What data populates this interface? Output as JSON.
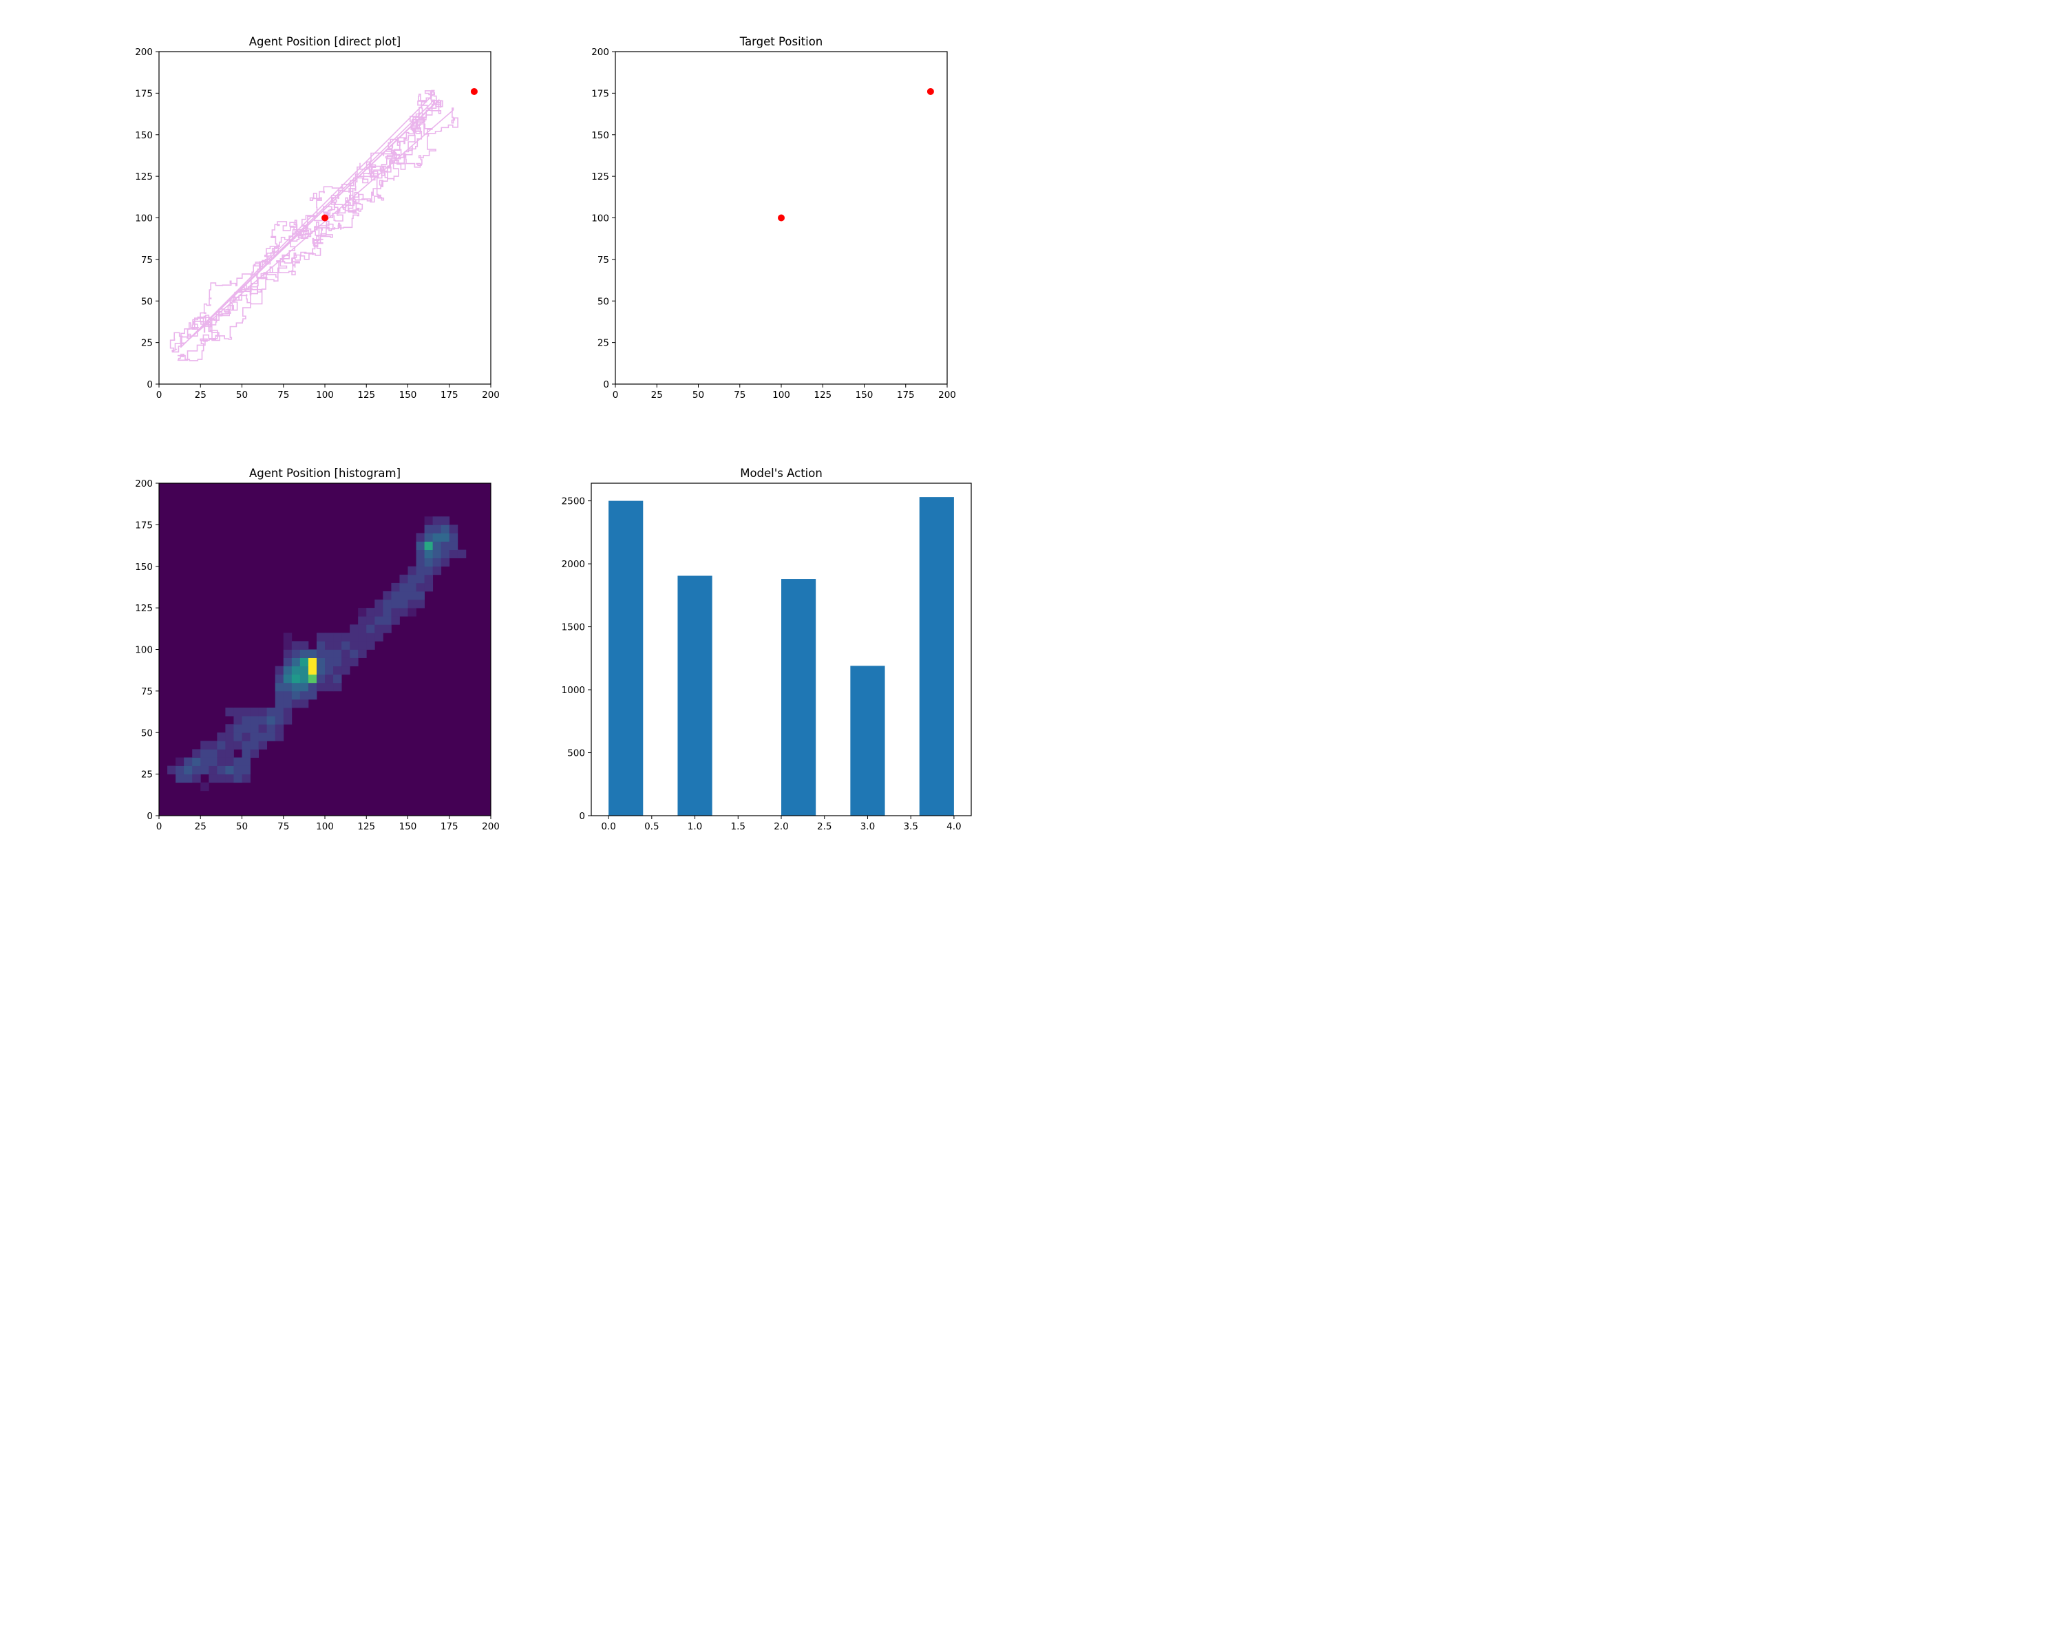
{
  "chart_data": [
    {
      "id": "agent_direct",
      "type": "line",
      "title": "Agent Position [direct plot]",
      "xlabel": "",
      "ylabel": "",
      "xlim": [
        0,
        200
      ],
      "ylim": [
        0,
        200
      ],
      "xticks": [
        0,
        25,
        50,
        75,
        100,
        125,
        150,
        175,
        200
      ],
      "yticks": [
        0,
        25,
        50,
        75,
        100,
        125,
        150,
        175,
        200
      ],
      "line_color": "#eab4ec",
      "point_color": "#ff0000",
      "targets": [
        [
          100,
          100
        ],
        [
          190,
          176
        ]
      ],
      "trajectory_summary": [
        [
          10,
          20
        ],
        [
          30,
          38
        ],
        [
          55,
          60
        ],
        [
          75,
          78
        ],
        [
          90,
          90
        ],
        [
          100,
          100
        ],
        [
          115,
          112
        ],
        [
          130,
          125
        ],
        [
          145,
          140
        ],
        [
          160,
          158
        ],
        [
          170,
          170
        ]
      ],
      "grid": false
    },
    {
      "id": "target_position",
      "type": "scatter",
      "title": "Target Position",
      "xlabel": "",
      "ylabel": "",
      "xlim": [
        0,
        200
      ],
      "ylim": [
        0,
        200
      ],
      "xticks": [
        0,
        25,
        50,
        75,
        100,
        125,
        150,
        175,
        200
      ],
      "yticks": [
        0,
        25,
        50,
        75,
        100,
        125,
        150,
        175,
        200
      ],
      "point_color": "#ff0000",
      "points": [
        [
          100,
          100
        ],
        [
          190,
          176
        ]
      ],
      "grid": false
    },
    {
      "id": "agent_hist",
      "type": "heatmap",
      "title": "Agent Position [histogram]",
      "xlabel": "",
      "ylabel": "",
      "xlim": [
        0,
        200
      ],
      "ylim": [
        0,
        200
      ],
      "xticks": [
        0,
        25,
        50,
        75,
        100,
        125,
        150,
        175,
        200
      ],
      "yticks": [
        0,
        25,
        50,
        75,
        100,
        125,
        150,
        175,
        200
      ],
      "colormap": "viridis",
      "bin_width": 5,
      "max_count": 15,
      "cells": [
        [
          10,
          20,
          3
        ],
        [
          15,
          20,
          3
        ],
        [
          20,
          20,
          2
        ],
        [
          25,
          15,
          1
        ],
        [
          30,
          20,
          2
        ],
        [
          35,
          20,
          2
        ],
        [
          40,
          20,
          2
        ],
        [
          45,
          20,
          3
        ],
        [
          50,
          20,
          2
        ],
        [
          5,
          25,
          2
        ],
        [
          10,
          25,
          3
        ],
        [
          15,
          25,
          4
        ],
        [
          20,
          25,
          3
        ],
        [
          25,
          25,
          3
        ],
        [
          30,
          25,
          2
        ],
        [
          35,
          25,
          3
        ],
        [
          40,
          25,
          4
        ],
        [
          45,
          25,
          3
        ],
        [
          50,
          25,
          3
        ],
        [
          10,
          30,
          1
        ],
        [
          15,
          30,
          3
        ],
        [
          20,
          30,
          4
        ],
        [
          25,
          30,
          3
        ],
        [
          30,
          30,
          3
        ],
        [
          35,
          30,
          2
        ],
        [
          40,
          30,
          2
        ],
        [
          45,
          30,
          3
        ],
        [
          50,
          30,
          3
        ],
        [
          20,
          35,
          2
        ],
        [
          25,
          35,
          3
        ],
        [
          30,
          35,
          3
        ],
        [
          35,
          35,
          2
        ],
        [
          40,
          35,
          2
        ],
        [
          50,
          35,
          3
        ],
        [
          55,
          35,
          2
        ],
        [
          25,
          40,
          2
        ],
        [
          30,
          40,
          2
        ],
        [
          35,
          40,
          3
        ],
        [
          40,
          40,
          2
        ],
        [
          45,
          40,
          2
        ],
        [
          50,
          40,
          3
        ],
        [
          55,
          40,
          3
        ],
        [
          60,
          40,
          2
        ],
        [
          35,
          45,
          2
        ],
        [
          40,
          45,
          2
        ],
        [
          45,
          45,
          3
        ],
        [
          50,
          45,
          2
        ],
        [
          55,
          45,
          3
        ],
        [
          60,
          45,
          3
        ],
        [
          65,
          45,
          3
        ],
        [
          70,
          45,
          2
        ],
        [
          40,
          50,
          2
        ],
        [
          45,
          50,
          3
        ],
        [
          50,
          50,
          3
        ],
        [
          55,
          50,
          3
        ],
        [
          60,
          50,
          2
        ],
        [
          65,
          50,
          3
        ],
        [
          70,
          50,
          2
        ],
        [
          45,
          55,
          2
        ],
        [
          50,
          55,
          3
        ],
        [
          55,
          55,
          3
        ],
        [
          60,
          55,
          3
        ],
        [
          65,
          55,
          4
        ],
        [
          70,
          55,
          3
        ],
        [
          75,
          55,
          2
        ],
        [
          40,
          60,
          2
        ],
        [
          45,
          60,
          2
        ],
        [
          50,
          60,
          2
        ],
        [
          55,
          60,
          2
        ],
        [
          60,
          60,
          2
        ],
        [
          65,
          60,
          3
        ],
        [
          70,
          60,
          3
        ],
        [
          75,
          60,
          2
        ],
        [
          70,
          65,
          3
        ],
        [
          75,
          65,
          3
        ],
        [
          80,
          65,
          2
        ],
        [
          85,
          65,
          2
        ],
        [
          70,
          70,
          3
        ],
        [
          75,
          70,
          3
        ],
        [
          80,
          70,
          4
        ],
        [
          85,
          70,
          3
        ],
        [
          90,
          70,
          3
        ],
        [
          70,
          75,
          4
        ],
        [
          75,
          75,
          4
        ],
        [
          80,
          75,
          5
        ],
        [
          85,
          75,
          5
        ],
        [
          90,
          75,
          3
        ],
        [
          95,
          75,
          2
        ],
        [
          100,
          75,
          2
        ],
        [
          105,
          75,
          2
        ],
        [
          70,
          80,
          3
        ],
        [
          75,
          80,
          6
        ],
        [
          80,
          80,
          8
        ],
        [
          85,
          80,
          7
        ],
        [
          90,
          80,
          11
        ],
        [
          95,
          80,
          3
        ],
        [
          100,
          80,
          2
        ],
        [
          105,
          80,
          3
        ],
        [
          70,
          85,
          2
        ],
        [
          75,
          85,
          5
        ],
        [
          80,
          85,
          7
        ],
        [
          85,
          85,
          7
        ],
        [
          90,
          85,
          15
        ],
        [
          95,
          85,
          4
        ],
        [
          100,
          85,
          3
        ],
        [
          105,
          85,
          2
        ],
        [
          110,
          85,
          2
        ],
        [
          75,
          90,
          3
        ],
        [
          80,
          90,
          5
        ],
        [
          85,
          90,
          8
        ],
        [
          90,
          90,
          15
        ],
        [
          95,
          90,
          4
        ],
        [
          100,
          90,
          3
        ],
        [
          105,
          90,
          3
        ],
        [
          110,
          90,
          2
        ],
        [
          115,
          90,
          2
        ],
        [
          75,
          95,
          2
        ],
        [
          80,
          95,
          3
        ],
        [
          85,
          95,
          4
        ],
        [
          90,
          95,
          4
        ],
        [
          95,
          95,
          3
        ],
        [
          100,
          95,
          3
        ],
        [
          105,
          95,
          3
        ],
        [
          110,
          95,
          2
        ],
        [
          115,
          95,
          3
        ],
        [
          120,
          95,
          2
        ],
        [
          75,
          100,
          1
        ],
        [
          80,
          100,
          2
        ],
        [
          85,
          100,
          2
        ],
        [
          95,
          100,
          3
        ],
        [
          100,
          100,
          2
        ],
        [
          105,
          100,
          2
        ],
        [
          110,
          100,
          3
        ],
        [
          115,
          100,
          2
        ],
        [
          120,
          100,
          2
        ],
        [
          125,
          100,
          2
        ],
        [
          75,
          105,
          1
        ],
        [
          95,
          105,
          2
        ],
        [
          100,
          105,
          2
        ],
        [
          105,
          105,
          2
        ],
        [
          110,
          105,
          2
        ],
        [
          115,
          105,
          2
        ],
        [
          120,
          105,
          2
        ],
        [
          125,
          105,
          2
        ],
        [
          130,
          105,
          2
        ],
        [
          115,
          110,
          2
        ],
        [
          120,
          110,
          2
        ],
        [
          125,
          110,
          3
        ],
        [
          130,
          110,
          2
        ],
        [
          135,
          110,
          2
        ],
        [
          120,
          115,
          2
        ],
        [
          125,
          115,
          2
        ],
        [
          130,
          115,
          3
        ],
        [
          135,
          115,
          3
        ],
        [
          140,
          115,
          2
        ],
        [
          120,
          120,
          1
        ],
        [
          125,
          120,
          2
        ],
        [
          130,
          120,
          2
        ],
        [
          135,
          120,
          3
        ],
        [
          140,
          120,
          2
        ],
        [
          145,
          120,
          2
        ],
        [
          150,
          120,
          1
        ],
        [
          130,
          125,
          2
        ],
        [
          135,
          125,
          3
        ],
        [
          140,
          125,
          3
        ],
        [
          145,
          125,
          3
        ],
        [
          150,
          125,
          2
        ],
        [
          155,
          125,
          2
        ],
        [
          135,
          130,
          2
        ],
        [
          140,
          130,
          3
        ],
        [
          145,
          130,
          3
        ],
        [
          150,
          130,
          3
        ],
        [
          155,
          130,
          3
        ],
        [
          140,
          135,
          2
        ],
        [
          145,
          135,
          3
        ],
        [
          150,
          135,
          3
        ],
        [
          155,
          135,
          2
        ],
        [
          160,
          135,
          2
        ],
        [
          145,
          140,
          2
        ],
        [
          150,
          140,
          3
        ],
        [
          155,
          140,
          3
        ],
        [
          160,
          140,
          2
        ],
        [
          150,
          145,
          2
        ],
        [
          155,
          145,
          3
        ],
        [
          160,
          145,
          3
        ],
        [
          165,
          145,
          2
        ],
        [
          155,
          150,
          3
        ],
        [
          160,
          150,
          4
        ],
        [
          165,
          150,
          3
        ],
        [
          170,
          150,
          2
        ],
        [
          155,
          155,
          3
        ],
        [
          160,
          155,
          5
        ],
        [
          165,
          155,
          4
        ],
        [
          170,
          155,
          3
        ],
        [
          175,
          155,
          2
        ],
        [
          180,
          155,
          2
        ],
        [
          155,
          160,
          4
        ],
        [
          160,
          160,
          9
        ],
        [
          165,
          160,
          4
        ],
        [
          170,
          160,
          3
        ],
        [
          175,
          160,
          3
        ],
        [
          155,
          165,
          2
        ],
        [
          160,
          165,
          4
        ],
        [
          165,
          165,
          5
        ],
        [
          170,
          165,
          5
        ],
        [
          175,
          165,
          3
        ],
        [
          160,
          170,
          3
        ],
        [
          165,
          170,
          3
        ],
        [
          170,
          170,
          4
        ],
        [
          175,
          170,
          2
        ],
        [
          160,
          175,
          1
        ],
        [
          165,
          175,
          2
        ],
        [
          170,
          175,
          2
        ]
      ],
      "grid": false
    },
    {
      "id": "model_action",
      "type": "bar",
      "title": "Model's Action",
      "xlabel": "",
      "ylabel": "",
      "bin_edges": [
        0.0,
        0.4,
        0.8,
        1.2,
        1.6,
        2.0,
        2.4,
        2.8,
        3.2,
        3.6,
        4.0
      ],
      "values": [
        2500,
        0,
        1905,
        0,
        0,
        1880,
        0,
        1190,
        0,
        2530
      ],
      "xlim": [
        -0.2,
        4.2
      ],
      "ylim": [
        0,
        2640
      ],
      "xticks": [
        0.0,
        0.5,
        1.0,
        1.5,
        2.0,
        2.5,
        3.0,
        3.5,
        4.0
      ],
      "xticklabels": [
        "0.0",
        "0.5",
        "1.0",
        "1.5",
        "2.0",
        "2.5",
        "3.0",
        "3.5",
        "4.0"
      ],
      "yticks": [
        0,
        500,
        1000,
        1500,
        2000,
        2500
      ],
      "bar_color": "#1f77b4",
      "grid": false
    }
  ]
}
